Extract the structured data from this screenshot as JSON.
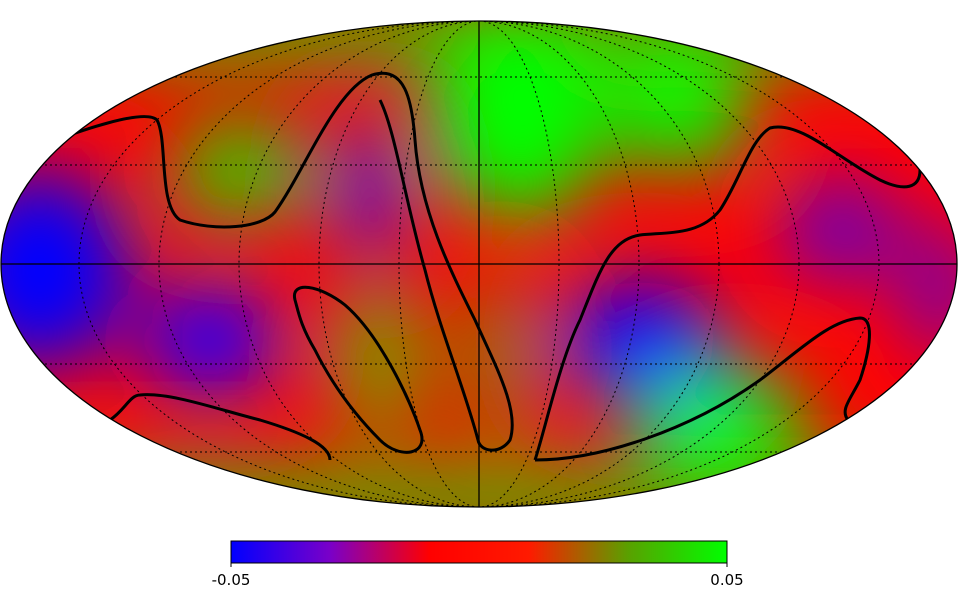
{
  "colorbar": {
    "ticks": [
      -0.05,
      0.05
    ],
    "colors": [
      "#0000ff",
      "#7a00c8",
      "#ff0000",
      "#ff1a00",
      "#5aa000",
      "#00ff00"
    ]
  }
}
